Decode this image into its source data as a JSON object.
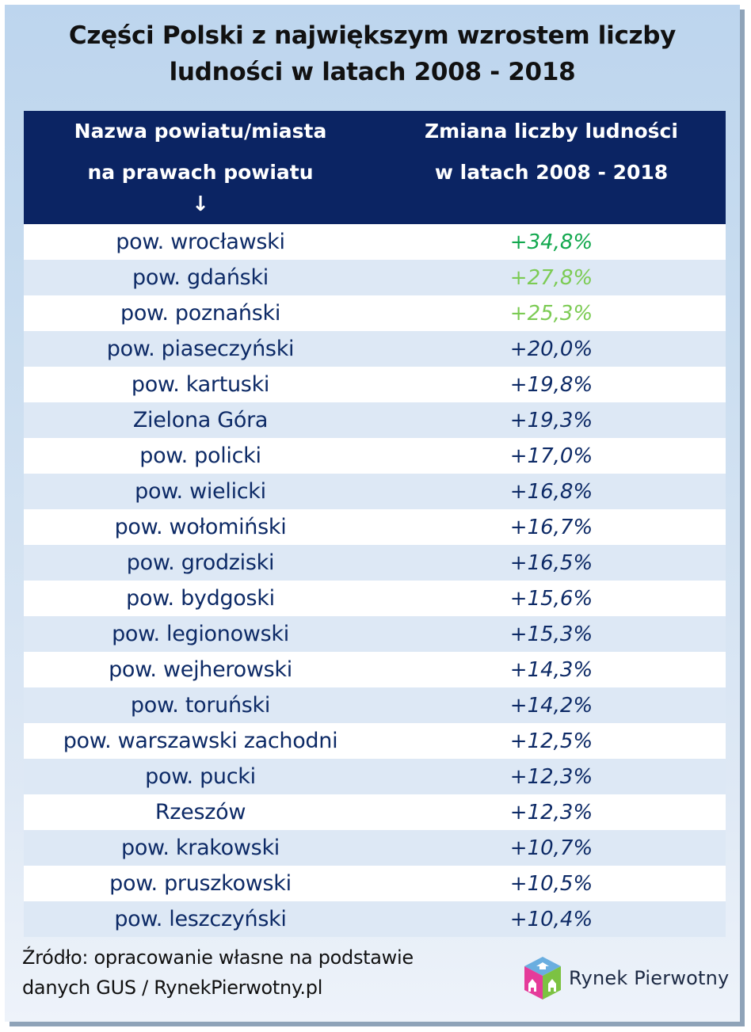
{
  "title": {
    "line1": "Części Polski z największym wzrostem liczby",
    "line2": "ludności w latach 2008 - 2018"
  },
  "table": {
    "headers": {
      "col1_line1": "Nazwa powiatu/miasta",
      "col1_line2": "na prawach powiatu",
      "col1_arrow": "↓",
      "col2_line1": "Zmiana liczby ludności",
      "col2_line2": "w latach 2008 - 2018"
    },
    "header_bg": "#0b2463",
    "text_color": "#0d2a66",
    "highlight_colors": [
      "#12a84e",
      "#7ccb54",
      "#7ccb54"
    ],
    "rows": [
      {
        "name": "pow. wrocławski",
        "value": "+34,8%"
      },
      {
        "name": "pow. gdański",
        "value": "+27,8%"
      },
      {
        "name": "pow. poznański",
        "value": "+25,3%"
      },
      {
        "name": "pow. piaseczyński",
        "value": "+20,0%"
      },
      {
        "name": "pow. kartuski",
        "value": "+19,8%"
      },
      {
        "name": "Zielona Góra",
        "value": "+19,3%"
      },
      {
        "name": "pow. policki",
        "value": "+17,0%"
      },
      {
        "name": "pow. wielicki",
        "value": "+16,8%"
      },
      {
        "name": "pow. wołomiński",
        "value": "+16,7%"
      },
      {
        "name": "pow. grodziski",
        "value": "+16,5%"
      },
      {
        "name": "pow. bydgoski",
        "value": "+15,6%"
      },
      {
        "name": "pow. legionowski",
        "value": "+15,3%"
      },
      {
        "name": "pow. wejherowski",
        "value": "+14,3%"
      },
      {
        "name": "pow. toruński",
        "value": "+14,2%"
      },
      {
        "name": "pow. warszawski zachodni",
        "value": "+12,5%"
      },
      {
        "name": "pow. pucki",
        "value": "+12,3%"
      },
      {
        "name": "Rzeszów",
        "value": "+12,3%"
      },
      {
        "name": "pow. krakowski",
        "value": "+10,7%"
      },
      {
        "name": "pow. pruszkowski",
        "value": "+10,5%"
      },
      {
        "name": "pow. leszczyński",
        "value": "+10,4%"
      }
    ]
  },
  "footer": {
    "source_line1": "Źródło: opracowanie własne na podstawie",
    "source_line2": "danych GUS / RynekPierwotny.pl",
    "logo_text": "Rynek Pierwotny",
    "logo_icon": "cube-houses-icon"
  }
}
